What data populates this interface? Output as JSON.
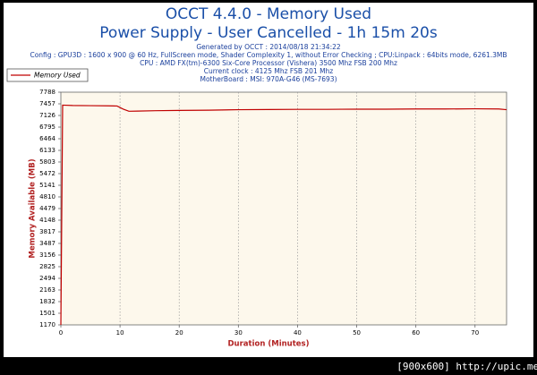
{
  "chart_data": {
    "type": "line",
    "title": "OCCT 4.4.0 - Memory Used",
    "subtitle": "Power Supply - User Cancelled - 1h 15m 20s",
    "info": [
      "Generated by OCCT : 2014/08/18 21:34:22",
      "Config : GPU3D : 1600 x 900 @ 60 Hz, FullScreen mode, Shader Complexity 1, without Error Checking ; CPU:Linpack : 64bits mode, 6261.3MB",
      "CPU : AMD FX(tm)-6300 Six-Core Processor (Vishera) 3500 Mhz FSB 200 Mhz",
      "Current clock : 4125 Mhz FSB 201 Mhz",
      "MotherBoard : MSI: 970A-G46 (MS-7693)"
    ],
    "x_label": "Duration (Minutes)",
    "y_label": "Memory Available (MB)",
    "x": [
      0,
      0.3,
      2,
      5,
      8,
      9.5,
      10.5,
      11.5,
      13,
      16,
      20,
      25,
      30,
      35,
      40,
      45,
      50,
      55,
      60,
      65,
      70,
      74,
      75.33
    ],
    "series": [
      {
        "name": "Memory Used",
        "color": "#c00000",
        "values": [
          1170,
          7420,
          7410,
          7405,
          7400,
          7395,
          7310,
          7245,
          7250,
          7262,
          7270,
          7275,
          7290,
          7295,
          7300,
          7300,
          7305,
          7305,
          7310,
          7310,
          7315,
          7310,
          7290
        ]
      }
    ],
    "xlim": [
      0,
      75.33
    ],
    "xticks": [
      0,
      10,
      20,
      30,
      40,
      50,
      60,
      70
    ],
    "ylim": [
      1170,
      7788
    ],
    "yticks": [
      1170,
      1501,
      1832,
      2163,
      2494,
      2825,
      3156,
      3487,
      3817,
      4148,
      4479,
      4810,
      5141,
      5472,
      5803,
      6133,
      6464,
      6795,
      7126,
      7457,
      7788
    ],
    "grid": true
  },
  "watermark": "[900x600] http://upic.me/"
}
